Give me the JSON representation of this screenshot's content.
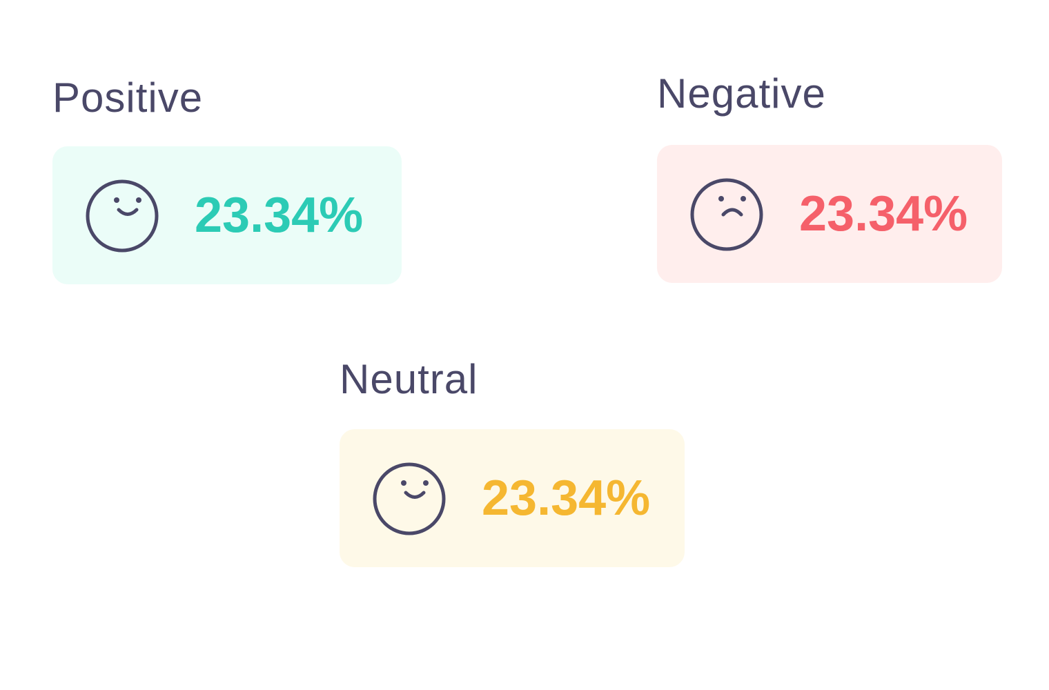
{
  "cards": [
    {
      "id": "positive",
      "label": "Positive",
      "value": "23.34%",
      "icon": "smiley-face-icon",
      "accent": "#2ccbb5",
      "background": "#ebfdf8"
    },
    {
      "id": "negative",
      "label": "Negative",
      "value": "23.34%",
      "icon": "frowning-face-icon",
      "accent": "#f5606a",
      "background": "#ffeeed"
    },
    {
      "id": "neutral",
      "label": "Neutral",
      "value": "23.34%",
      "icon": "smiley-face-icon",
      "accent": "#f5b731",
      "background": "#fef9e8"
    }
  ],
  "colors": {
    "label_text": "#4a4868",
    "icon_stroke": "#4a4868"
  }
}
